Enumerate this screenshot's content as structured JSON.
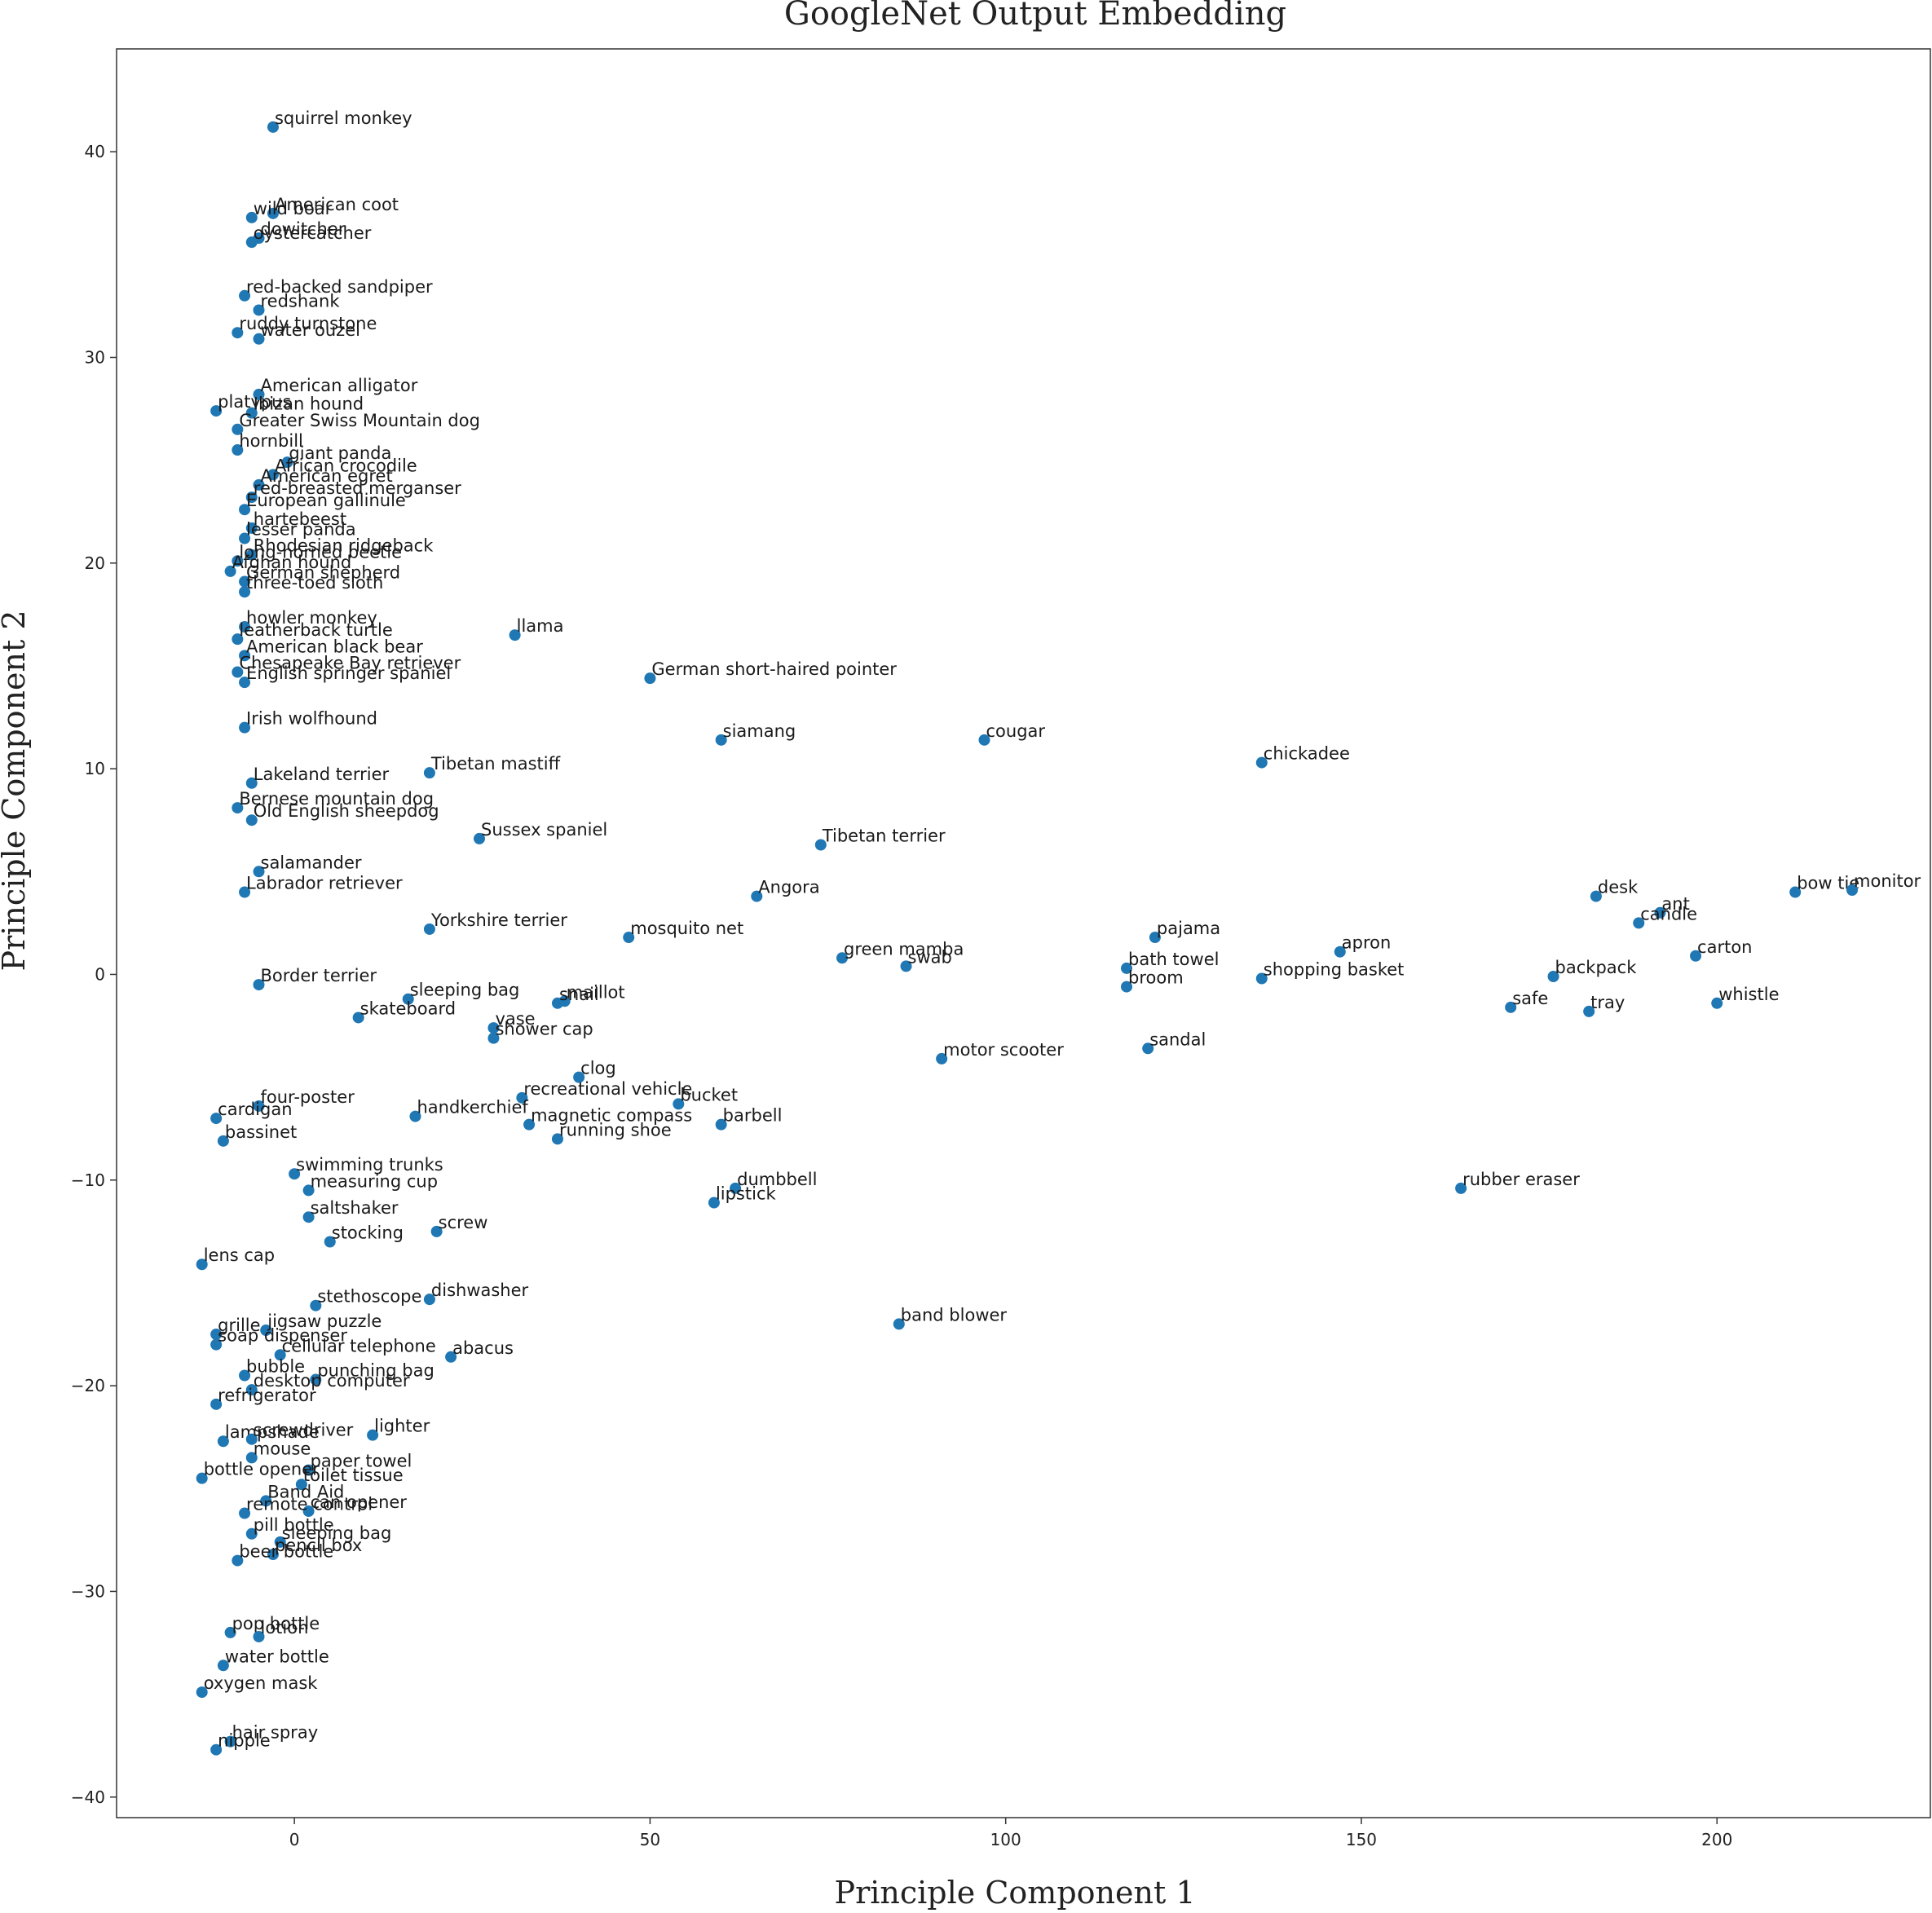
{
  "chart_data": {
    "type": "scatter",
    "title": "GoogleNet Output Embedding",
    "xlabel": "Principle Component 1",
    "ylabel": "Principle Component 2",
    "xlim": [
      -25,
      230
    ],
    "ylim": [
      -41,
      45
    ],
    "xticks": [
      0,
      50,
      100,
      150,
      200
    ],
    "yticks": [
      -40,
      -30,
      -20,
      -10,
      0,
      10,
      20,
      30,
      40
    ],
    "marker_color": "#1f77b4",
    "grid": false,
    "points": [
      {
        "label": "squirrel monkey",
        "x": -3,
        "y": 41.2
      },
      {
        "label": "American coot",
        "x": -3,
        "y": 37.0
      },
      {
        "label": "wild boar",
        "x": -6,
        "y": 36.8
      },
      {
        "label": "dowitcher",
        "x": -5,
        "y": 35.8
      },
      {
        "label": "oystercatcher",
        "x": -6,
        "y": 35.6
      },
      {
        "label": "red-backed sandpiper",
        "x": -7,
        "y": 33.0
      },
      {
        "label": "redshank",
        "x": -5,
        "y": 32.3
      },
      {
        "label": "ruddy turnstone",
        "x": -8,
        "y": 31.2
      },
      {
        "label": "water ouzel",
        "x": -5,
        "y": 30.9
      },
      {
        "label": "platypus",
        "x": -11,
        "y": 27.4
      },
      {
        "label": "American alligator",
        "x": -5,
        "y": 28.2
      },
      {
        "label": "Ibizan hound",
        "x": -6,
        "y": 27.3
      },
      {
        "label": "Greater Swiss Mountain dog",
        "x": -8,
        "y": 26.5
      },
      {
        "label": "hornbill",
        "x": -8,
        "y": 25.5
      },
      {
        "label": "giant panda",
        "x": -1,
        "y": 24.9
      },
      {
        "label": "African crocodile",
        "x": -3,
        "y": 24.3
      },
      {
        "label": "American egret",
        "x": -5,
        "y": 23.8
      },
      {
        "label": "red-breasted merganser",
        "x": -6,
        "y": 23.2
      },
      {
        "label": "European gallinule",
        "x": -7,
        "y": 22.6
      },
      {
        "label": "hartebeest",
        "x": -6,
        "y": 21.7
      },
      {
        "label": "lesser panda",
        "x": -7,
        "y": 21.2
      },
      {
        "label": "Rhodesian ridgeback",
        "x": -6,
        "y": 20.4
      },
      {
        "label": "long-horned beetle",
        "x": -8,
        "y": 20.1
      },
      {
        "label": "Afghan hound",
        "x": -9,
        "y": 19.6
      },
      {
        "label": "German shepherd",
        "x": -7,
        "y": 19.1
      },
      {
        "label": "three-toed sloth",
        "x": -7,
        "y": 18.6
      },
      {
        "label": "howler monkey",
        "x": -7,
        "y": 16.9
      },
      {
        "label": "leatherback turtle",
        "x": -8,
        "y": 16.3
      },
      {
        "label": "American black bear",
        "x": -7,
        "y": 15.5
      },
      {
        "label": "Chesapeake Bay retriever",
        "x": -8,
        "y": 14.7
      },
      {
        "label": "English springer spaniel",
        "x": -7,
        "y": 14.2
      },
      {
        "label": "llama",
        "x": 31,
        "y": 16.5
      },
      {
        "label": "German short-haired pointer",
        "x": 50,
        "y": 14.4
      },
      {
        "label": "siamang",
        "x": 60,
        "y": 11.4
      },
      {
        "label": "cougar",
        "x": 97,
        "y": 11.4
      },
      {
        "label": "chickadee",
        "x": 136,
        "y": 10.3
      },
      {
        "label": "Irish wolfhound",
        "x": -7,
        "y": 12.0
      },
      {
        "label": "Tibetan mastiff",
        "x": 19,
        "y": 9.8
      },
      {
        "label": "Lakeland terrier",
        "x": -6,
        "y": 9.3
      },
      {
        "label": "Bernese mountain dog",
        "x": -8,
        "y": 8.1
      },
      {
        "label": "Old English sheepdog",
        "x": -6,
        "y": 7.5
      },
      {
        "label": "Sussex spaniel",
        "x": 26,
        "y": 6.6
      },
      {
        "label": "Tibetan terrier",
        "x": 74,
        "y": 6.3
      },
      {
        "label": "Angora",
        "x": 65,
        "y": 3.8
      },
      {
        "label": "salamander",
        "x": -5,
        "y": 5.0
      },
      {
        "label": "Labrador retriever",
        "x": -7,
        "y": 4.0
      },
      {
        "label": "Yorkshire terrier",
        "x": 19,
        "y": 2.2
      },
      {
        "label": "mosquito net",
        "x": 47,
        "y": 1.8
      },
      {
        "label": "green mamba",
        "x": 77,
        "y": 0.8
      },
      {
        "label": "swab",
        "x": 86,
        "y": 0.4
      },
      {
        "label": "bath towel",
        "x": 117,
        "y": 0.3
      },
      {
        "label": "broom",
        "x": 117,
        "y": -0.6
      },
      {
        "label": "pajama",
        "x": 121,
        "y": 1.8
      },
      {
        "label": "apron",
        "x": 147,
        "y": 1.1
      },
      {
        "label": "shopping basket",
        "x": 136,
        "y": -0.2
      },
      {
        "label": "desk",
        "x": 183,
        "y": 3.8
      },
      {
        "label": "ant",
        "x": 192,
        "y": 3.0
      },
      {
        "label": "candle",
        "x": 189,
        "y": 2.5
      },
      {
        "label": "bow tie",
        "x": 211,
        "y": 4.0
      },
      {
        "label": "monitor",
        "x": 219,
        "y": 4.1
      },
      {
        "label": "carton",
        "x": 197,
        "y": 0.9
      },
      {
        "label": "backpack",
        "x": 177,
        "y": -0.1
      },
      {
        "label": "whistle",
        "x": 200,
        "y": -1.4
      },
      {
        "label": "safe",
        "x": 171,
        "y": -1.6
      },
      {
        "label": "tray",
        "x": 182,
        "y": -1.8
      },
      {
        "label": "Border terrier",
        "x": -5,
        "y": -0.5
      },
      {
        "label": "sleeping bag",
        "x": 16,
        "y": -1.2
      },
      {
        "label": "skateboard",
        "x": 9,
        "y": -2.1
      },
      {
        "label": "maillot",
        "x": 38,
        "y": -1.3
      },
      {
        "label": "snail",
        "x": 37,
        "y": -1.4
      },
      {
        "label": "vase",
        "x": 28,
        "y": -2.6
      },
      {
        "label": "shower cap",
        "x": 28,
        "y": -3.1
      },
      {
        "label": "motor scooter",
        "x": 91,
        "y": -4.1
      },
      {
        "label": "sandal",
        "x": 120,
        "y": -3.6
      },
      {
        "label": "clog",
        "x": 40,
        "y": -5.0
      },
      {
        "label": "recreational vehicle",
        "x": 32,
        "y": -6.0
      },
      {
        "label": "bucket",
        "x": 54,
        "y": -6.3
      },
      {
        "label": "handkerchief",
        "x": 17,
        "y": -6.9
      },
      {
        "label": "magnetic compass",
        "x": 33,
        "y": -7.3
      },
      {
        "label": "barbell",
        "x": 60,
        "y": -7.3
      },
      {
        "label": "running shoe",
        "x": 37,
        "y": -8.0
      },
      {
        "label": "four-poster",
        "x": -5,
        "y": -6.4
      },
      {
        "label": "cardigan",
        "x": -11,
        "y": -7.0
      },
      {
        "label": "bassinet",
        "x": -10,
        "y": -8.1
      },
      {
        "label": "swimming trunks",
        "x": 0,
        "y": -9.7
      },
      {
        "label": "measuring cup",
        "x": 2,
        "y": -10.5
      },
      {
        "label": "dumbbell",
        "x": 62,
        "y": -10.4
      },
      {
        "label": "lipstick",
        "x": 59,
        "y": -11.1
      },
      {
        "label": "rubber eraser",
        "x": 164,
        "y": -10.4
      },
      {
        "label": "saltshaker",
        "x": 2,
        "y": -11.8
      },
      {
        "label": "screw",
        "x": 20,
        "y": -12.5
      },
      {
        "label": "stocking",
        "x": 5,
        "y": -13.0
      },
      {
        "label": "lens cap",
        "x": -13,
        "y": -14.1
      },
      {
        "label": "dishwasher",
        "x": 19,
        "y": -15.8
      },
      {
        "label": "stethoscope",
        "x": 3,
        "y": -16.1
      },
      {
        "label": "jigsaw puzzle",
        "x": -4,
        "y": -17.3
      },
      {
        "label": "grille",
        "x": -11,
        "y": -17.5
      },
      {
        "label": "soap dispenser",
        "x": -11,
        "y": -18.0
      },
      {
        "label": "abacus",
        "x": 22,
        "y": -18.6
      },
      {
        "label": "band blower",
        "x": 85,
        "y": -17.0
      },
      {
        "label": "cellular telephone",
        "x": -2,
        "y": -18.5
      },
      {
        "label": "bubble",
        "x": -7,
        "y": -19.5
      },
      {
        "label": "punching bag",
        "x": 3,
        "y": -19.7
      },
      {
        "label": "desktop computer",
        "x": -6,
        "y": -20.2
      },
      {
        "label": "refrigerator",
        "x": -11,
        "y": -20.9
      },
      {
        "label": "lighter",
        "x": 11,
        "y": -22.4
      },
      {
        "label": "lampshade",
        "x": -10,
        "y": -22.7
      },
      {
        "label": "screwdriver",
        "x": -6,
        "y": -22.6
      },
      {
        "label": "mouse",
        "x": -6,
        "y": -23.5
      },
      {
        "label": "paper towel",
        "x": 2,
        "y": -24.1
      },
      {
        "label": "bottle opener",
        "x": -13,
        "y": -24.5
      },
      {
        "label": "toilet tissue",
        "x": 1,
        "y": -24.8
      },
      {
        "label": "Band Aid",
        "x": -4,
        "y": -25.6
      },
      {
        "label": "can opener",
        "x": 2,
        "y": -26.1
      },
      {
        "label": "remote control",
        "x": -7,
        "y": -26.2
      },
      {
        "label": "pill bottle",
        "x": -6,
        "y": -27.2
      },
      {
        "label": "sleeping bag",
        "x": -2,
        "y": -27.6
      },
      {
        "label": "pencil box",
        "x": -3,
        "y": -28.2
      },
      {
        "label": "beer bottle",
        "x": -8,
        "y": -28.5
      },
      {
        "label": "pop bottle",
        "x": -9,
        "y": -32.0
      },
      {
        "label": "lotion",
        "x": -5,
        "y": -32.2
      },
      {
        "label": "water bottle",
        "x": -10,
        "y": -33.6
      },
      {
        "label": "oxygen mask",
        "x": -13,
        "y": -34.9
      },
      {
        "label": "hair spray",
        "x": -9,
        "y": -37.3
      },
      {
        "label": "nipple",
        "x": -11,
        "y": -37.7
      }
    ]
  }
}
